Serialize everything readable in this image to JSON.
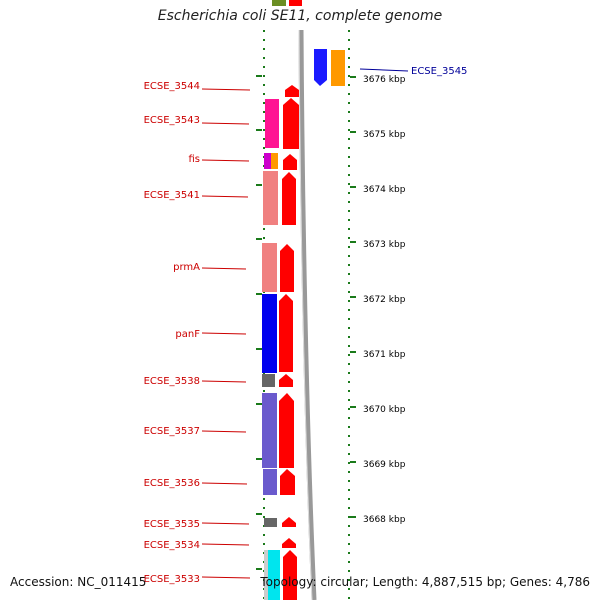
{
  "header": {
    "title": "Escherichia coli SE11, complete genome"
  },
  "footer": {
    "accession": "Accession: NC_011415",
    "topology": "Topology: circular; Length: 4,887,515 bp; Genes: 4,786"
  },
  "colors": {
    "forward_cds": "#ff0000",
    "forward_cds_highlight": "#ffb0b0",
    "label_left": "#cc0000",
    "label_right": "#000099",
    "backbone": "#808080",
    "tick": "#1a7a1a",
    "scale_text": "#000000"
  },
  "scale": {
    "unit": "kbp",
    "ticks": [
      {
        "label": "3676 kbp"
      },
      {
        "label": "3675 kbp"
      },
      {
        "label": "3674 kbp"
      },
      {
        "label": "3673 kbp"
      },
      {
        "label": "3672 kbp"
      },
      {
        "label": "3671 kbp"
      },
      {
        "label": "3670 kbp"
      },
      {
        "label": "3669 kbp"
      },
      {
        "label": "3668 kbp"
      }
    ]
  },
  "genes_left": [
    {
      "name": "ECSE_3544",
      "color": "#ff0000",
      "cog_color": null
    },
    {
      "name": "ECSE_3543",
      "color": "#ff0000",
      "cog_color": "#ff1493"
    },
    {
      "name": "fis",
      "color": "#ff0000",
      "cog_color": "#cc00cc",
      "cog_color2": "#ff9900"
    },
    {
      "name": "ECSE_3541",
      "color": "#ff0000",
      "cog_color": "#f08080"
    },
    {
      "name": "prmA",
      "color": "#ff0000",
      "cog_color": "#f08080"
    },
    {
      "name": "panF",
      "color": "#ff0000",
      "cog_color": "#0000ff"
    },
    {
      "name": "ECSE_3538",
      "color": "#ff0000",
      "cog_color": "#666666"
    },
    {
      "name": "ECSE_3537",
      "color": "#ff0000",
      "cog_color": "#6a5acd"
    },
    {
      "name": "ECSE_3536",
      "color": "#ff0000",
      "cog_color": "#6a5acd"
    },
    {
      "name": "ECSE_3535",
      "color": "#ff0000",
      "cog_color": "#666666"
    },
    {
      "name": "ECSE_3534",
      "color": "#ff0000",
      "cog_color": null
    },
    {
      "name": "ECSE_3533",
      "color": "#ff0000",
      "cog_color": "#00ffff"
    }
  ],
  "genes_right": [
    {
      "name": "ECSE_3545",
      "color": "#1a1aff",
      "cog_color": "#ff9900"
    }
  ]
}
